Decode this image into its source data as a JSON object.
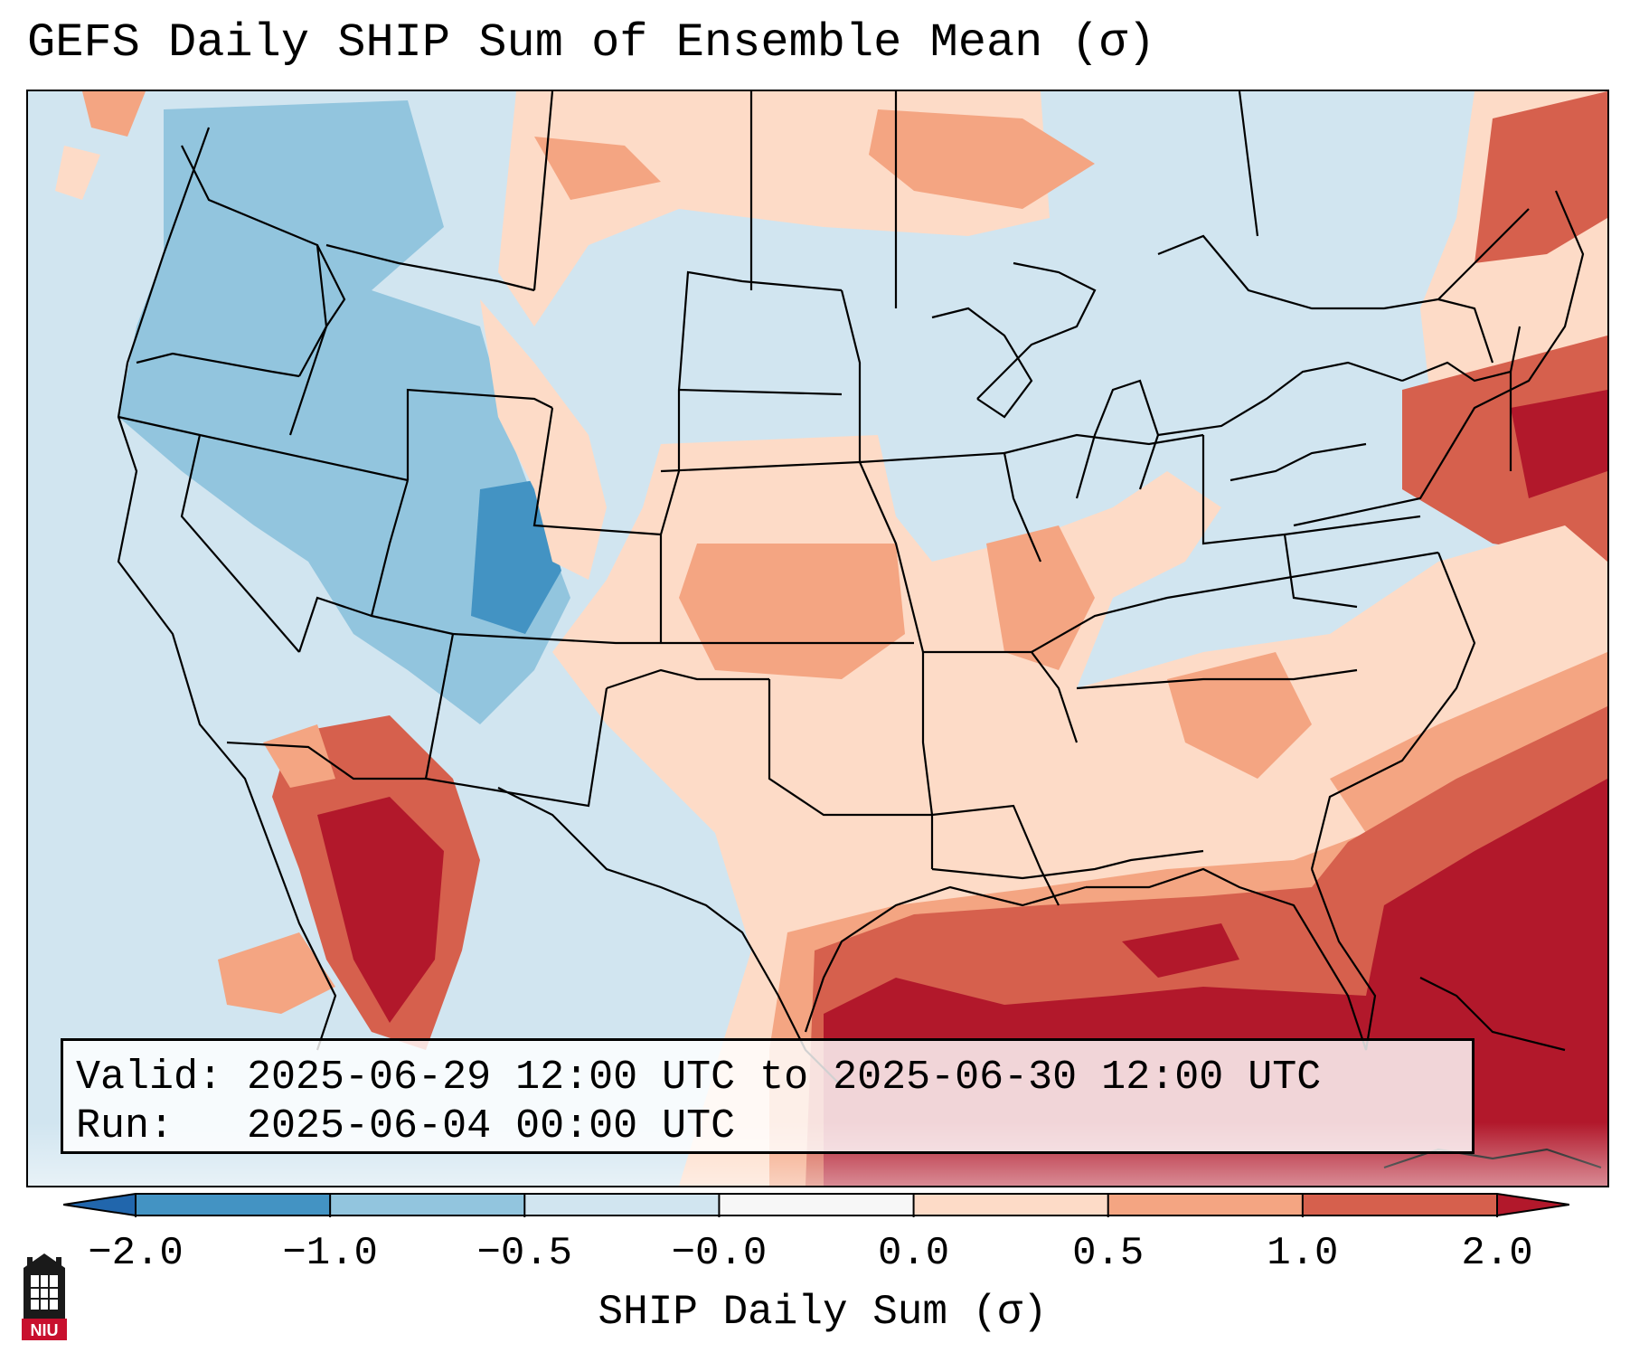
{
  "title": "GEFS Daily SHIP Sum of Ensemble Mean (σ)",
  "info": {
    "valid_line": "Valid: 2025-06-29 12:00 UTC to 2025-06-30 12:00 UTC",
    "run_line": "Run:   2025-06-04 00:00 UTC"
  },
  "colorbar": {
    "label": "SHIP Daily Sum (σ)",
    "tick_labels": [
      "−2.0",
      "−1.0",
      "−0.5",
      "−0.0",
      "0.0",
      "0.5",
      "1.0",
      "2.0"
    ],
    "colors": {
      "below": "#2166ac",
      "bins": [
        "#4393c3",
        "#92c5de",
        "#d1e5f0",
        "#f7f7f7",
        "#fddbc7",
        "#f4a582",
        "#d6604d"
      ],
      "above": "#b2182b"
    }
  },
  "logo": {
    "text": "NIU",
    "icon": "niu-tower-icon"
  }
}
